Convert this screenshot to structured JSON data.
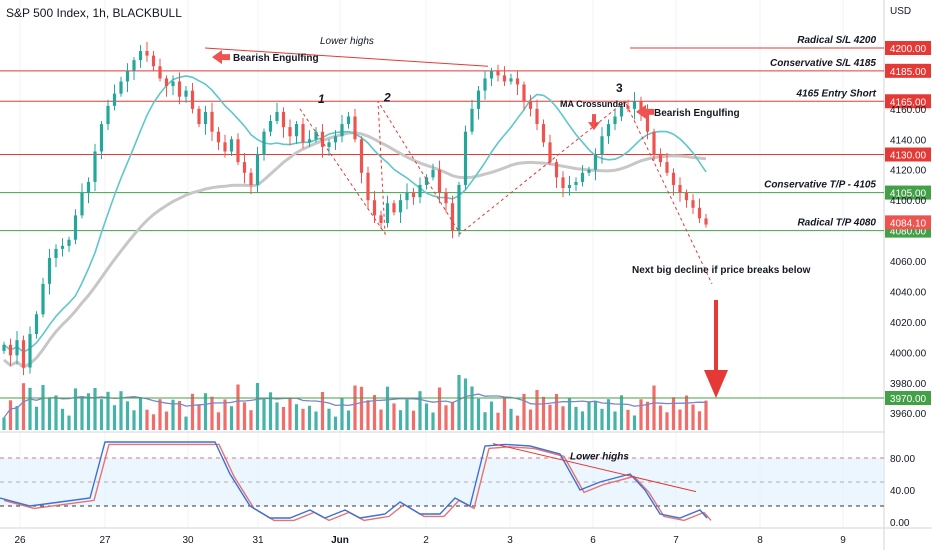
{
  "header": {
    "title": "S&P 500 Index, 1h, BLACKBULL",
    "currency": "USD"
  },
  "colors": {
    "up": "#26a69a",
    "down": "#ef5350",
    "red_line": "#e53935",
    "green_line": "#43a047",
    "ma_fast": "#5ec7c9",
    "ma_slow": "#c7c7c7",
    "vol_ma": "#7986cb",
    "stoch_k": "#3f6fd6",
    "stoch_d": "#e57373",
    "band": "#e3f2fd"
  },
  "price_axis": {
    "ticks": [
      "4160.00",
      "4140.00",
      "4120.00",
      "4100.00",
      "4060.00",
      "4040.00",
      "4020.00",
      "4000.00",
      "3980.00",
      "3960.00"
    ],
    "tick_values": [
      4160,
      4140,
      4120,
      4100,
      4060,
      4040,
      4020,
      4000,
      3980,
      3960
    ]
  },
  "levels": [
    {
      "value": 4200,
      "label": "Radical S/L 4200",
      "tag": "4200.00",
      "color": "red"
    },
    {
      "value": 4185,
      "label": "Conservative S/L 4185",
      "tag": "4185.00",
      "color": "red"
    },
    {
      "value": 4165,
      "label": "4165 Entry Short",
      "tag": "4165.00",
      "color": "red"
    },
    {
      "value": 4130,
      "label": "",
      "tag": "4130.00",
      "color": "red"
    },
    {
      "value": 4105,
      "label": "Conservative T/P - 4105",
      "tag": "4105.00",
      "color": "green"
    },
    {
      "value": 4080,
      "label": "Radical T/P 4080",
      "tag": "4080.00",
      "color": "green"
    },
    {
      "value": 3970,
      "label": "",
      "tag": "3970.00",
      "color": "green"
    }
  ],
  "last_price": {
    "value": 4084.1,
    "tag": "4084.10"
  },
  "annotations": {
    "lower_highs_top": "Lower highs",
    "bearish_engulfing_1": "Bearish Engulfing",
    "bearish_engulfing_2": "Bearish Engulfing",
    "ma_crossunder": "MA Crossunder",
    "next_decline": "Next big decline if price breaks below",
    "lower_highs_osc": "Lower highs",
    "wave_1": "1",
    "wave_2": "2",
    "wave_3": "3"
  },
  "oscillator_axis": {
    "ticks": [
      "80.00",
      "40.00",
      "0.00"
    ],
    "tick_values": [
      80,
      40,
      0
    ]
  },
  "x_axis": {
    "labels": [
      "26",
      "27",
      "30",
      "31",
      "Jun",
      "2",
      "3",
      "6",
      "7",
      "8",
      "9"
    ]
  },
  "chart_data": {
    "type": "candlestick",
    "title": "S&P 500 Index, 1h, BLACKBULL",
    "ylim": [
      3950,
      4215
    ],
    "close_series": [
      4005,
      3998,
      4008,
      3990,
      4012,
      4025,
      4045,
      4062,
      4068,
      4070,
      4074,
      4090,
      4105,
      4112,
      4132,
      4150,
      4162,
      4170,
      4178,
      4185,
      4192,
      4198,
      4195,
      4188,
      4180,
      4175,
      4178,
      4168,
      4172,
      4160,
      4150,
      4158,
      4145,
      4138,
      4132,
      4140,
      4125,
      4118,
      4110,
      4130,
      4145,
      4152,
      4158,
      4148,
      4142,
      4150,
      4138,
      4140,
      4145,
      4135,
      4138,
      4142,
      4150,
      4155,
      4140,
      4118,
      4100,
      4090,
      4085,
      4098,
      4092,
      4100,
      4105,
      4102,
      4110,
      4115,
      4120,
      4105,
      4098,
      4080,
      4110,
      4145,
      4160,
      4172,
      4180,
      4185,
      4182,
      4178,
      4180,
      4176,
      4165,
      4160,
      4150,
      4138,
      4125,
      4115,
      4108,
      4110,
      4112,
      4118,
      4120,
      4130,
      4142,
      4150,
      4155,
      4162,
      4160,
      4165,
      4158,
      4145,
      4130,
      4125,
      4118,
      4110,
      4105,
      4100,
      4095,
      4088,
      4084
    ],
    "volume": {
      "ylim": [
        0,
        100
      ]
    },
    "stochastic": {
      "ylim": [
        0,
        100
      ],
      "bands": [
        80,
        20
      ]
    }
  }
}
